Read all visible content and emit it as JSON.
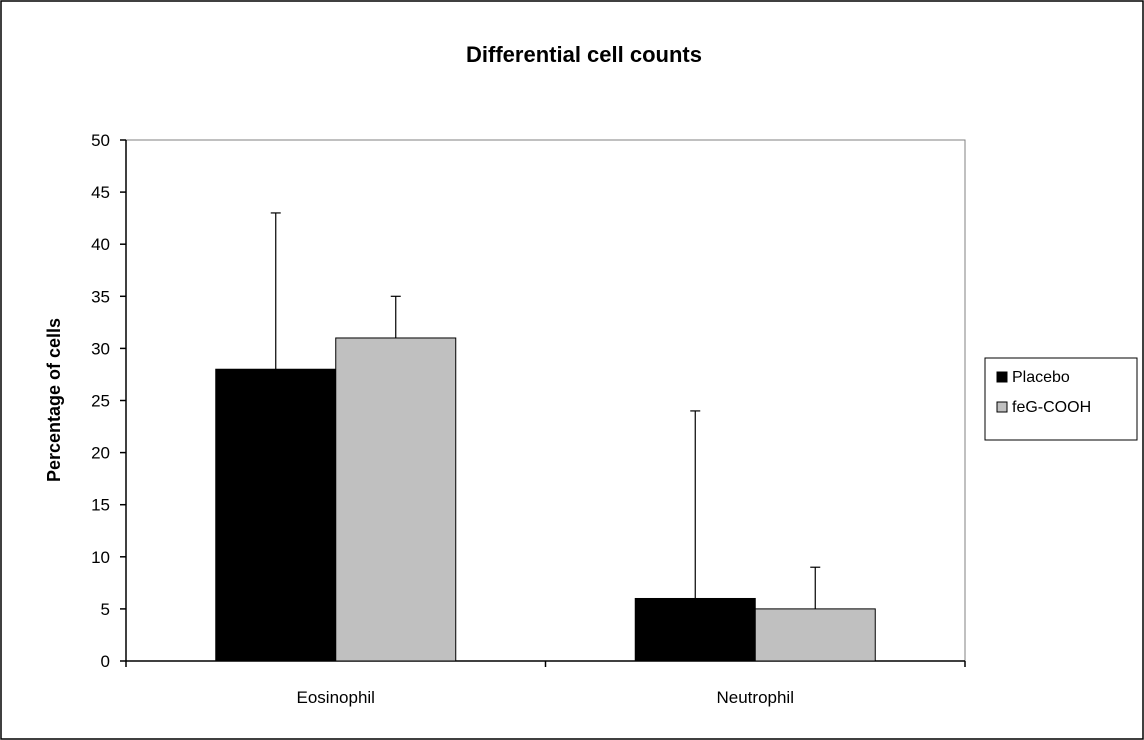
{
  "chart_data": {
    "type": "bar",
    "title": "Differential cell counts",
    "ylabel": "Percentage of cells",
    "xlabel": "",
    "categories": [
      "Eosinophil",
      "Neutrophil"
    ],
    "ylim": [
      0,
      50
    ],
    "yticks": [
      0,
      5,
      10,
      15,
      20,
      25,
      30,
      35,
      40,
      45,
      50
    ],
    "grid": false,
    "legend_position": "right",
    "series": [
      {
        "name": "Placebo",
        "values": [
          28,
          6
        ],
        "error_upper": [
          15,
          18
        ],
        "color": "#000000"
      },
      {
        "name": "feG-COOH",
        "values": [
          31,
          5
        ],
        "error_upper": [
          4,
          4
        ],
        "color": "#c0c0c0"
      }
    ]
  }
}
